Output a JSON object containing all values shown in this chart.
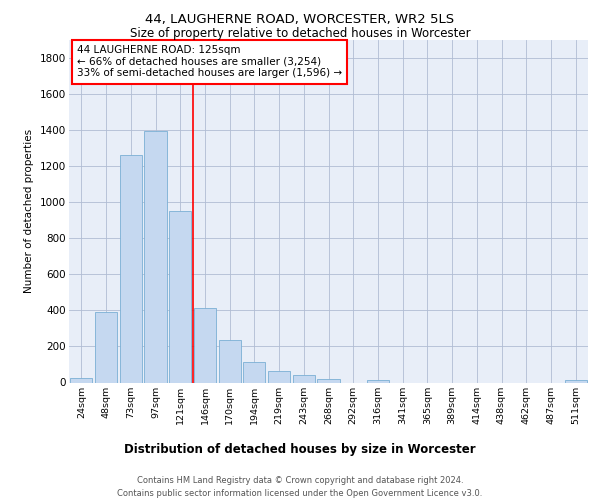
{
  "title": "44, LAUGHERNE ROAD, WORCESTER, WR2 5LS",
  "subtitle": "Size of property relative to detached houses in Worcester",
  "xlabel": "Distribution of detached houses by size in Worcester",
  "ylabel": "Number of detached properties",
  "footer_line1": "Contains HM Land Registry data © Crown copyright and database right 2024.",
  "footer_line2": "Contains public sector information licensed under the Open Government Licence v3.0.",
  "bar_color": "#c5d8f0",
  "bar_edge_color": "#7bafd4",
  "background_color": "#e8eef8",
  "grid_color": "#b0bcd4",
  "annotation_text": "44 LAUGHERNE ROAD: 125sqm\n← 66% of detached houses are smaller (3,254)\n33% of semi-detached houses are larger (1,596) →",
  "categories": [
    "24sqm",
    "48sqm",
    "73sqm",
    "97sqm",
    "121sqm",
    "146sqm",
    "170sqm",
    "194sqm",
    "219sqm",
    "243sqm",
    "268sqm",
    "292sqm",
    "316sqm",
    "341sqm",
    "365sqm",
    "389sqm",
    "414sqm",
    "438sqm",
    "462sqm",
    "487sqm",
    "511sqm"
  ],
  "values": [
    25,
    390,
    1260,
    1395,
    950,
    415,
    235,
    115,
    65,
    42,
    20,
    0,
    15,
    0,
    0,
    0,
    0,
    0,
    0,
    0,
    15
  ],
  "ylim": [
    0,
    1900
  ],
  "yticks": [
    0,
    200,
    400,
    600,
    800,
    1000,
    1200,
    1400,
    1600,
    1800
  ],
  "red_line_bar_index": 4
}
